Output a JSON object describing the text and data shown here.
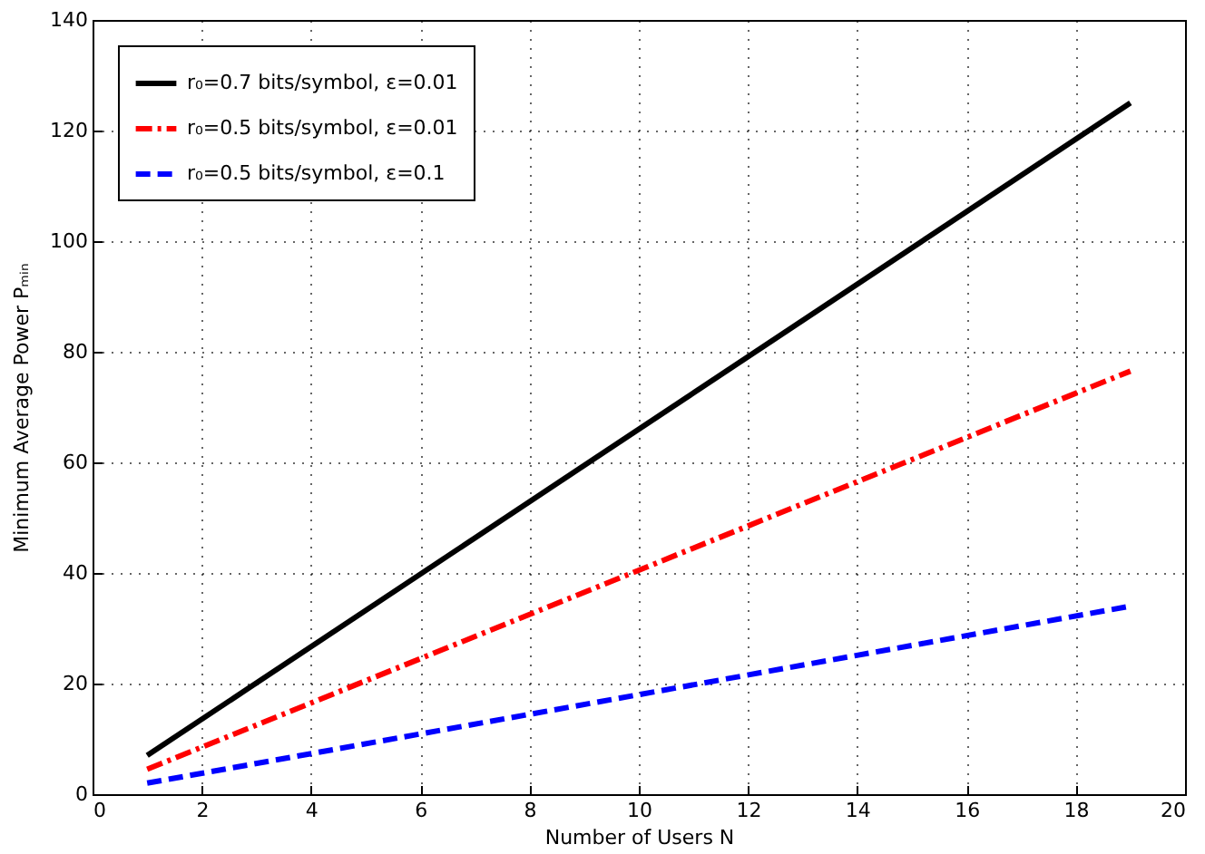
{
  "chart_data": {
    "type": "line",
    "xlabel": "Number of Users N",
    "ylabel": "Minimum Average Power Pₘᵢₙ",
    "x": [
      1,
      19
    ],
    "xlim": [
      0,
      20
    ],
    "xticks": [
      0,
      2,
      4,
      6,
      8,
      10,
      12,
      14,
      16,
      18,
      20
    ],
    "ylim": [
      0,
      140
    ],
    "yticks": [
      0,
      20,
      40,
      60,
      80,
      100,
      120,
      140
    ],
    "grid": true,
    "legend": "top left",
    "marker": "none",
    "series": [
      {
        "name": "r₀=0.7 bits/symbol, ε=0.01",
        "color": "#000000",
        "line_style": "solid",
        "values": [
          7,
          125
        ]
      },
      {
        "name": "r₀=0.5 bits/symbol, ε=0.01",
        "color": "#ff0000",
        "line_style": "dashdot",
        "values": [
          4.5,
          76.5
        ]
      },
      {
        "name": "r₀=0.5 bits/symbol, ε=0.1",
        "color": "#0000ff",
        "line_style": "dashed",
        "values": [
          2,
          34
        ]
      }
    ]
  }
}
